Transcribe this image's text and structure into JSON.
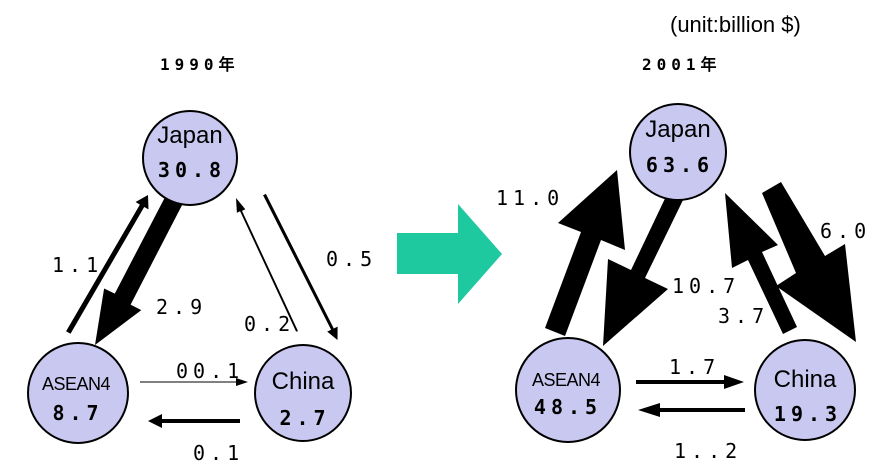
{
  "unit_note": "(unit:billion $)",
  "colors": {
    "node_fill": "#c9c8f0",
    "node_stroke": "#000000",
    "arrow": "#000000",
    "transition_arrow": "#1fc9a0"
  },
  "left": {
    "year": "1990年",
    "japan": {
      "name": "Japan",
      "value": "30.8"
    },
    "asean": {
      "name": "ASEAN4",
      "value": "8.7"
    },
    "china": {
      "name": "China",
      "value": "2.7"
    },
    "flows": {
      "asean_to_japan": "1.1",
      "japan_to_asean": "2.9",
      "japan_to_china": "0.5",
      "china_to_japan": "0.2",
      "asean_to_china": "00.1",
      "china_to_asean": "0.1"
    }
  },
  "right": {
    "year": "2001年",
    "japan": {
      "name": "Japan",
      "value": "63.6"
    },
    "asean": {
      "name": "ASEAN4",
      "value": "48.5"
    },
    "china": {
      "name": "China",
      "value": "19.3"
    },
    "flows": {
      "asean_to_japan": "11.0",
      "japan_to_asean": "10.7",
      "china_to_japan": "3.7",
      "japan_to_china": "6.0",
      "asean_to_china": "1.7",
      "china_to_asean": "1..2"
    }
  }
}
